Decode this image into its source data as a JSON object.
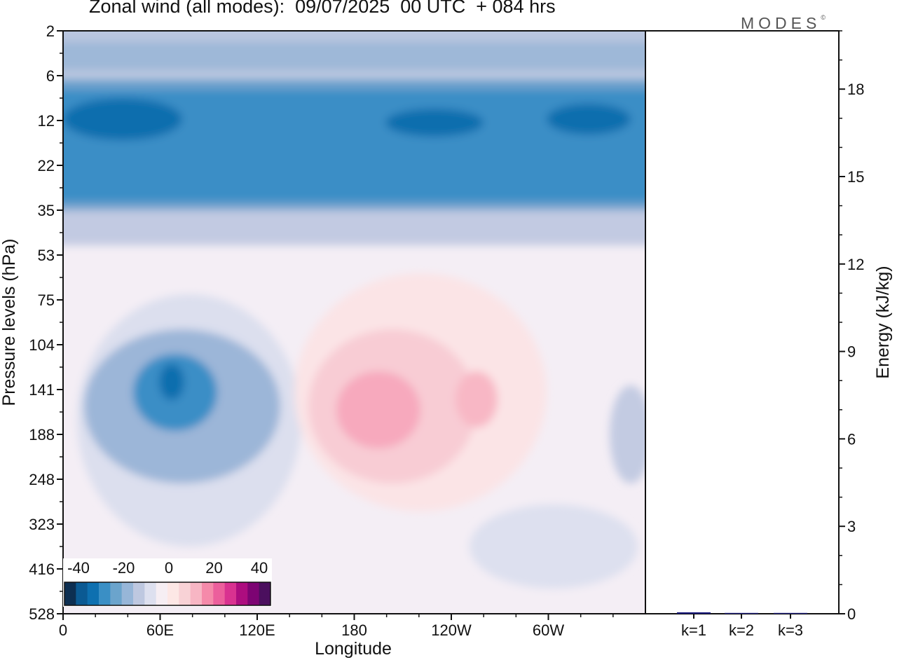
{
  "title": "Zonal wind (all modes):  09/07/2025  00 UTC  + 084 hrs",
  "logo": {
    "text": "MODES",
    "mark": "©"
  },
  "chart_data": [
    {
      "type": "heatmap",
      "title": "Zonal wind (all modes):  09/07/2025  00 UTC  + 084 hrs",
      "xlabel": "Longitude",
      "ylabel": "Pressure levels (hPa)",
      "x_ticks": [
        "0",
        "60E",
        "120E",
        "180",
        "120W",
        "60W"
      ],
      "y_ticks": [
        "2",
        "6",
        "12",
        "22",
        "35",
        "53",
        "75",
        "104",
        "141",
        "188",
        "248",
        "323",
        "416",
        "528"
      ],
      "colorbar": {
        "labels": [
          "-40",
          "-20",
          "0",
          "20",
          "40"
        ],
        "colors": [
          "#0d2f52",
          "#0b5a93",
          "#0e70b0",
          "#3a8fc5",
          "#6ba4cc",
          "#97b6d8",
          "#bec8e0",
          "#dde0ef",
          "#f6eef3",
          "#fde7e5",
          "#f8d2d6",
          "#f7b6c4",
          "#f58aaa",
          "#ec5f9c",
          "#d93290",
          "#ad0d7f",
          "#7d0473",
          "#4b0f5e"
        ]
      },
      "regions": [
        {
          "level_from": "2",
          "level_to": "6",
          "value": -10
        },
        {
          "level_from": "6",
          "level_to": "35",
          "value": -30
        },
        {
          "level_from": "12",
          "level_to": "12",
          "value": -40
        },
        {
          "level_from": "35",
          "level_to": "53",
          "value": -10
        },
        {
          "level_from": "53",
          "level_to": "528",
          "value": 0
        },
        {
          "level_from": "104",
          "level_to": "248",
          "lon_from": "30E",
          "lon_to": "150E",
          "value": -15
        },
        {
          "level_from": "104",
          "level_to": "188",
          "lon_from": "40E",
          "lon_to": "90E",
          "value": -30
        },
        {
          "level_from": "75",
          "level_to": "323",
          "lon_from": "155E",
          "lon_to": "60W",
          "value": 5
        },
        {
          "level_from": "104",
          "level_to": "248",
          "lon_from": "160E",
          "lon_to": "140W",
          "value": 10
        },
        {
          "level_from": "104",
          "level_to": "188",
          "lon_from": "170E",
          "lon_to": "150W",
          "value": 20
        }
      ]
    },
    {
      "type": "bar",
      "categories": [
        "k=1",
        "k=2",
        "k=3"
      ],
      "values": [
        0.05,
        0.02,
        0.01
      ],
      "ylabel": "Energy (kJ/kg)",
      "y_ticks": [
        "0",
        "3",
        "6",
        "9",
        "12",
        "15",
        "18"
      ],
      "ylim": [
        0,
        20
      ],
      "bar_color": "#1a1a7a"
    }
  ]
}
